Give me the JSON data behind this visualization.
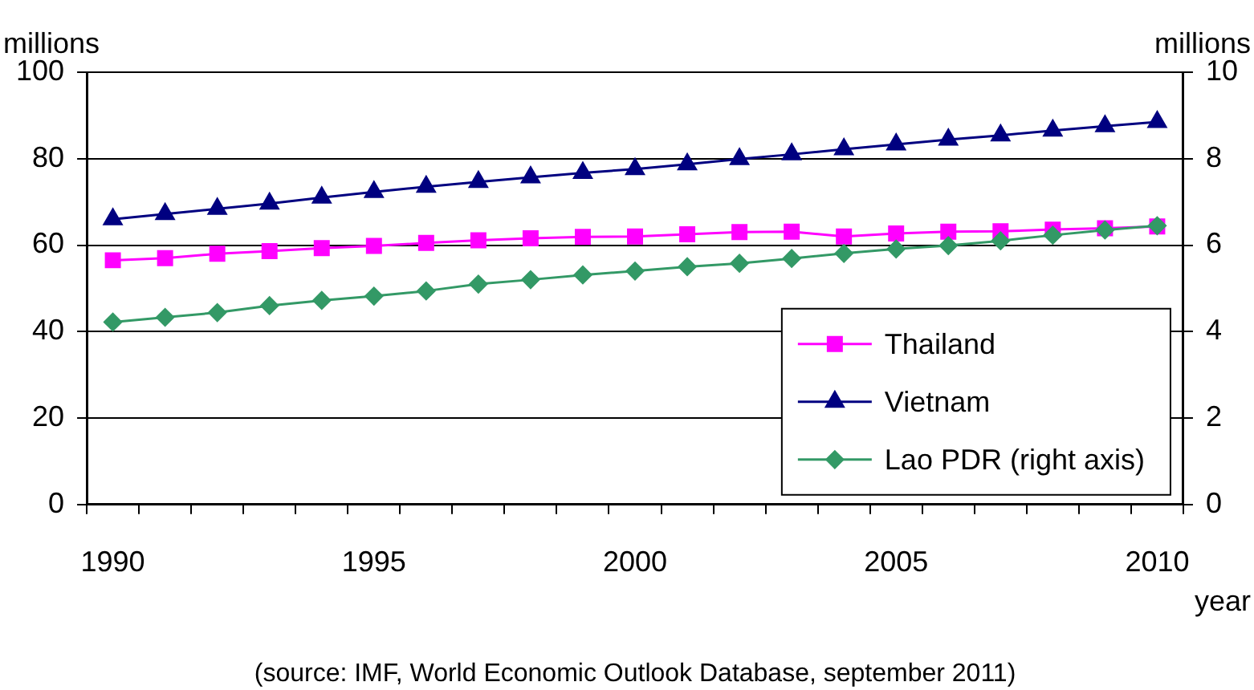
{
  "chart_data": {
    "type": "line",
    "ylabel": "millions",
    "y2label": "millions",
    "xlabel": "year",
    "categories": [
      "1990",
      null,
      null,
      null,
      null,
      "1995",
      null,
      null,
      null,
      null,
      "2000",
      null,
      null,
      null,
      null,
      "2005",
      null,
      null,
      null,
      null,
      "2010"
    ],
    "series": [
      {
        "name": "Thailand",
        "color": "#ff00ff",
        "marker": "square",
        "values": [
          56.5,
          57.0,
          58.0,
          58.6,
          59.3,
          59.8,
          60.5,
          61.1,
          61.6,
          61.9,
          62.0,
          62.5,
          63.0,
          63.1,
          62.0,
          62.7,
          63.1,
          63.2,
          63.6,
          63.9,
          64.3
        ]
      },
      {
        "name": "Vietnam",
        "color": "#000080",
        "marker": "triangle",
        "values": [
          66.0,
          67.2,
          68.4,
          69.6,
          71.0,
          72.3,
          73.5,
          74.6,
          75.7,
          76.7,
          77.6,
          78.7,
          79.9,
          81.0,
          82.2,
          83.3,
          84.4,
          85.4,
          86.5,
          87.5,
          88.5
        ]
      },
      {
        "name": "Lao PDR (right axis)",
        "color": "#339966",
        "marker": "diamond",
        "axis": "y2",
        "values": [
          4.22,
          4.33,
          4.44,
          4.6,
          4.72,
          4.82,
          4.94,
          5.1,
          5.2,
          5.31,
          5.4,
          5.5,
          5.58,
          5.69,
          5.81,
          5.91,
          5.99,
          6.1,
          6.23,
          6.35,
          6.45
        ]
      }
    ],
    "ylim": [
      0,
      100
    ],
    "yticks": [
      0,
      20,
      40,
      60,
      80,
      100
    ],
    "y2lim": [
      0,
      10
    ],
    "y2ticks": [
      0,
      2,
      4,
      6,
      8,
      10
    ],
    "grid": "y",
    "legend": "bottom right",
    "annotations": [
      "(source: IMF, World Economic Outlook Database, september 2011)"
    ]
  }
}
